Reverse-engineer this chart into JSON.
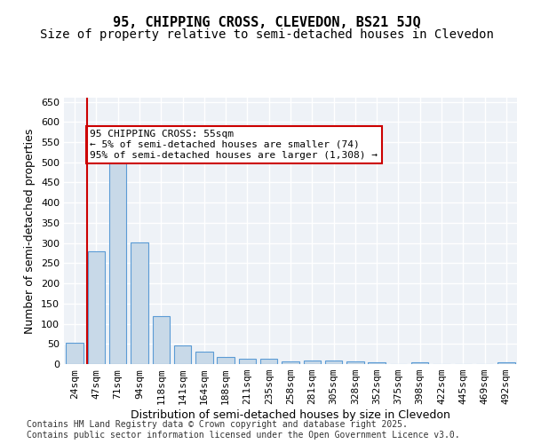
{
  "title_line1": "95, CHIPPING CROSS, CLEVEDON, BS21 5JQ",
  "title_line2": "Size of property relative to semi-detached houses in Clevedon",
  "xlabel": "Distribution of semi-detached houses by size in Clevedon",
  "ylabel": "Number of semi-detached properties",
  "categories": [
    "24sqm",
    "47sqm",
    "71sqm",
    "94sqm",
    "118sqm",
    "141sqm",
    "164sqm",
    "188sqm",
    "211sqm",
    "235sqm",
    "258sqm",
    "281sqm",
    "305sqm",
    "328sqm",
    "352sqm",
    "375sqm",
    "398sqm",
    "422sqm",
    "445sqm",
    "469sqm",
    "492sqm"
  ],
  "values": [
    52,
    280,
    515,
    302,
    118,
    47,
    31,
    17,
    13,
    13,
    7,
    8,
    9,
    6,
    5,
    0,
    4,
    1,
    0,
    0,
    4
  ],
  "bar_color": "#c8d9e8",
  "bar_edge_color": "#5b9bd5",
  "bar_width": 0.8,
  "red_line_x": 1,
  "red_line_color": "#cc0000",
  "annotation_text": "95 CHIPPING CROSS: 55sqm\n← 5% of semi-detached houses are smaller (74)\n95% of semi-detached houses are larger (1,308) →",
  "annotation_box_color": "#ffffff",
  "annotation_box_edge_color": "#cc0000",
  "ylim": [
    0,
    660
  ],
  "yticks": [
    0,
    50,
    100,
    150,
    200,
    250,
    300,
    350,
    400,
    450,
    500,
    550,
    600,
    650
  ],
  "background_color": "#eef2f7",
  "grid_color": "#ffffff",
  "footer_line1": "Contains HM Land Registry data © Crown copyright and database right 2025.",
  "footer_line2": "Contains public sector information licensed under the Open Government Licence v3.0.",
  "title_fontsize": 11,
  "subtitle_fontsize": 10,
  "axis_label_fontsize": 9,
  "tick_fontsize": 8,
  "annotation_fontsize": 8,
  "footer_fontsize": 7
}
